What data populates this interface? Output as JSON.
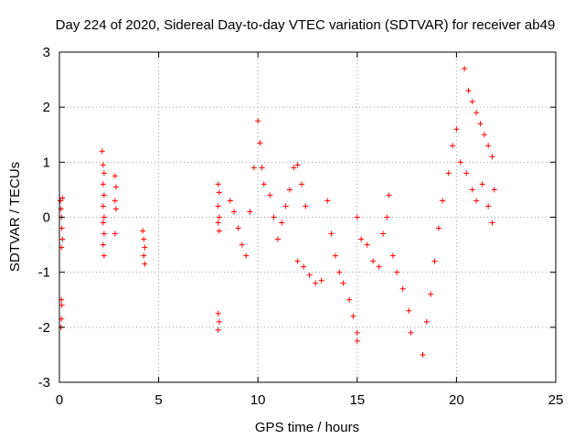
{
  "chart_data": {
    "type": "scatter",
    "title": "Day 224 of 2020, Sidereal Day-to-day VTEC variation (SDTVAR) for receiver ab49",
    "xlabel": "GPS time / hours",
    "ylabel": "SDTVAR / TECUs",
    "xlim": [
      0,
      25
    ],
    "ylim": [
      -3,
      3
    ],
    "xticks": [
      0,
      5,
      10,
      15,
      20,
      25
    ],
    "yticks": [
      -3,
      -2,
      -1,
      0,
      1,
      2,
      3
    ],
    "xtick_labels": [
      "0",
      "5",
      "10",
      "15",
      "20",
      "25"
    ],
    "ytick_labels": [
      "-3",
      "-2",
      "-1",
      "0",
      "1",
      "2",
      "3"
    ],
    "grid": true,
    "marker": "+",
    "series": [
      {
        "name": "SDTVAR",
        "color": "#ff0000",
        "points": [
          [
            0.05,
            0.3
          ],
          [
            0.08,
            0.15
          ],
          [
            0.1,
            0.0
          ],
          [
            0.12,
            -0.2
          ],
          [
            0.15,
            -0.4
          ],
          [
            0.1,
            -0.55
          ],
          [
            0.15,
            0.35
          ],
          [
            0.1,
            -1.5
          ],
          [
            0.12,
            -1.6
          ],
          [
            0.1,
            -1.85
          ],
          [
            0.08,
            -2.0
          ],
          [
            2.15,
            1.2
          ],
          [
            2.2,
            0.95
          ],
          [
            2.25,
            0.8
          ],
          [
            2.2,
            0.6
          ],
          [
            2.25,
            0.4
          ],
          [
            2.2,
            0.2
          ],
          [
            2.25,
            0.0
          ],
          [
            2.2,
            -0.1
          ],
          [
            2.25,
            -0.3
          ],
          [
            2.2,
            -0.5
          ],
          [
            2.25,
            -0.7
          ],
          [
            2.8,
            0.75
          ],
          [
            2.85,
            0.55
          ],
          [
            2.8,
            0.3
          ],
          [
            2.85,
            0.15
          ],
          [
            2.8,
            -0.3
          ],
          [
            4.2,
            -0.25
          ],
          [
            4.25,
            -0.4
          ],
          [
            4.3,
            -0.55
          ],
          [
            4.25,
            -0.7
          ],
          [
            4.3,
            -0.85
          ],
          [
            8.0,
            0.6
          ],
          [
            8.05,
            0.45
          ],
          [
            8.0,
            0.2
          ],
          [
            8.05,
            0.0
          ],
          [
            8.0,
            -0.1
          ],
          [
            8.05,
            -0.25
          ],
          [
            8.0,
            -1.75
          ],
          [
            8.05,
            -1.9
          ],
          [
            8.0,
            -2.05
          ],
          [
            8.6,
            0.3
          ],
          [
            8.8,
            0.1
          ],
          [
            9.0,
            -0.2
          ],
          [
            9.2,
            -0.5
          ],
          [
            9.4,
            -0.7
          ],
          [
            9.6,
            0.1
          ],
          [
            9.8,
            0.9
          ],
          [
            10.0,
            1.75
          ],
          [
            10.1,
            1.35
          ],
          [
            10.2,
            0.9
          ],
          [
            10.3,
            0.6
          ],
          [
            10.6,
            0.4
          ],
          [
            10.8,
            0.0
          ],
          [
            11.0,
            -0.4
          ],
          [
            11.2,
            -0.1
          ],
          [
            11.4,
            0.2
          ],
          [
            11.6,
            0.5
          ],
          [
            11.8,
            0.9
          ],
          [
            12.0,
            0.95
          ],
          [
            12.2,
            0.6
          ],
          [
            12.4,
            0.2
          ],
          [
            12.0,
            -0.8
          ],
          [
            12.3,
            -0.9
          ],
          [
            12.6,
            -1.05
          ],
          [
            12.9,
            -1.2
          ],
          [
            13.2,
            -1.15
          ],
          [
            13.5,
            0.3
          ],
          [
            13.7,
            -0.3
          ],
          [
            13.9,
            -0.7
          ],
          [
            14.1,
            -1.0
          ],
          [
            14.3,
            -1.2
          ],
          [
            14.6,
            -1.5
          ],
          [
            14.8,
            -1.8
          ],
          [
            15.0,
            -2.1
          ],
          [
            15.0,
            -2.25
          ],
          [
            15.0,
            0.0
          ],
          [
            15.2,
            -0.4
          ],
          [
            15.5,
            -0.5
          ],
          [
            15.8,
            -0.8
          ],
          [
            16.1,
            -0.9
          ],
          [
            16.3,
            -0.3
          ],
          [
            16.5,
            0.0
          ],
          [
            16.6,
            0.4
          ],
          [
            16.8,
            -0.7
          ],
          [
            17.0,
            -1.0
          ],
          [
            17.3,
            -1.3
          ],
          [
            17.6,
            -1.7
          ],
          [
            17.7,
            -2.1
          ],
          [
            18.3,
            -2.5
          ],
          [
            18.5,
            -1.9
          ],
          [
            18.7,
            -1.4
          ],
          [
            18.9,
            -0.8
          ],
          [
            19.1,
            -0.2
          ],
          [
            19.3,
            0.3
          ],
          [
            19.6,
            0.8
          ],
          [
            19.8,
            1.3
          ],
          [
            20.0,
            1.6
          ],
          [
            20.2,
            1.0
          ],
          [
            20.4,
            2.7
          ],
          [
            20.6,
            2.3
          ],
          [
            20.8,
            2.1
          ],
          [
            21.0,
            1.9
          ],
          [
            21.2,
            1.7
          ],
          [
            21.4,
            1.5
          ],
          [
            21.6,
            1.3
          ],
          [
            21.8,
            1.1
          ],
          [
            20.5,
            0.8
          ],
          [
            20.8,
            0.5
          ],
          [
            21.0,
            0.3
          ],
          [
            21.3,
            0.6
          ],
          [
            21.6,
            0.2
          ],
          [
            21.8,
            -0.1
          ],
          [
            21.9,
            0.5
          ]
        ]
      }
    ]
  }
}
